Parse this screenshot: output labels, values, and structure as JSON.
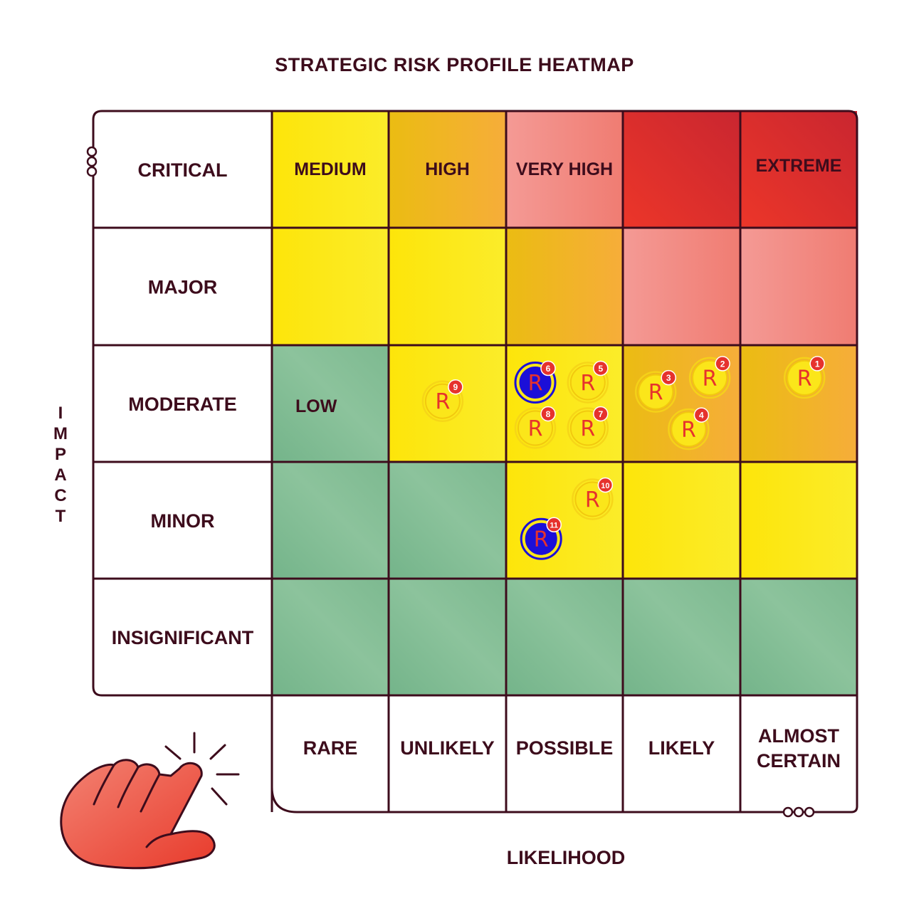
{
  "chart_data": {
    "type": "heatmap",
    "title": "STRATEGIC RISK PROFILE HEATMAP",
    "xlabel": "LIKELIHOOD",
    "ylabel": "IMPACT",
    "x_categories": [
      "RARE",
      "UNLIKELY",
      "POSSIBLE",
      "LIKELY",
      "ALMOST CERTAIN"
    ],
    "y_categories": [
      "CRITICAL",
      "MAJOR",
      "MODERATE",
      "MINOR",
      "INSIGNIFICANT"
    ],
    "rating_labels": [
      {
        "text": "MEDIUM",
        "impact": "CRITICAL",
        "likelihood": "RARE"
      },
      {
        "text": "HIGH",
        "impact": "CRITICAL",
        "likelihood": "UNLIKELY"
      },
      {
        "text": "VERY HIGH",
        "impact": "CRITICAL",
        "likelihood": "POSSIBLE"
      },
      {
        "text": "EXTREME",
        "impact": "CRITICAL",
        "likelihood": "ALMOST CERTAIN"
      },
      {
        "text": "LOW",
        "impact": "MODERATE",
        "likelihood": "RARE"
      }
    ],
    "matrix": [
      [
        "medium",
        "high",
        "very-high",
        "extreme",
        "extreme"
      ],
      [
        "medium",
        "medium",
        "high",
        "very-high",
        "very-high"
      ],
      [
        "low",
        "medium",
        "medium",
        "high",
        "high"
      ],
      [
        "low",
        "low",
        "medium",
        "medium",
        "medium"
      ],
      [
        "low",
        "low",
        "low",
        "low",
        "low"
      ]
    ],
    "level_colors": {
      "low": "#7fbb91",
      "medium": "#fbe61a",
      "high": "#f0b22a",
      "very-high": "#f3847c",
      "extreme": "#e0302c"
    },
    "risks": [
      {
        "id": "1",
        "marker": "R",
        "impact": "MODERATE",
        "likelihood": "ALMOST CERTAIN",
        "style": "yellow"
      },
      {
        "id": "2",
        "marker": "R",
        "impact": "MODERATE",
        "likelihood": "LIKELY",
        "style": "yellow"
      },
      {
        "id": "3",
        "marker": "R",
        "impact": "MODERATE",
        "likelihood": "LIKELY",
        "style": "yellow"
      },
      {
        "id": "4",
        "marker": "R",
        "impact": "MODERATE",
        "likelihood": "LIKELY",
        "style": "yellow"
      },
      {
        "id": "5",
        "marker": "R",
        "impact": "MODERATE",
        "likelihood": "POSSIBLE",
        "style": "yellow"
      },
      {
        "id": "6",
        "marker": "R",
        "impact": "MODERATE",
        "likelihood": "POSSIBLE",
        "style": "blue"
      },
      {
        "id": "7",
        "marker": "R",
        "impact": "MODERATE",
        "likelihood": "POSSIBLE",
        "style": "yellow"
      },
      {
        "id": "8",
        "marker": "R",
        "impact": "MODERATE",
        "likelihood": "POSSIBLE",
        "style": "yellow"
      },
      {
        "id": "9",
        "marker": "R",
        "impact": "MODERATE",
        "likelihood": "UNLIKELY",
        "style": "yellow"
      },
      {
        "id": "10",
        "marker": "R",
        "impact": "MINOR",
        "likelihood": "POSSIBLE",
        "style": "yellow"
      },
      {
        "id": "11",
        "marker": "R",
        "impact": "MINOR",
        "likelihood": "POSSIBLE",
        "style": "blue"
      }
    ]
  },
  "colors": {
    "frame": "#3d0c1c",
    "text": "#3d0c1c",
    "badge": "#e6322d",
    "marker_yellow": "#fbe61a",
    "marker_yellow_ring": "#f5d418",
    "marker_blue": "#1b0fd8",
    "marker_letter": "#e6322d",
    "hand": "#ee5a4a"
  },
  "icons": {
    "hand": "pointing-hand-click-icon",
    "rings": "ring-decoration-icon"
  }
}
